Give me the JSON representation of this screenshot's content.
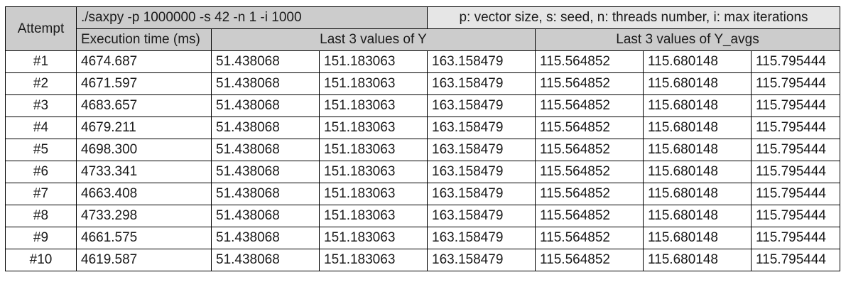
{
  "header": {
    "attempt_label": "Attempt",
    "command": "./saxpy -p 1000000 -s 42 -n 1 -i 1000",
    "legend": "p: vector size, s: seed, n: threads number, i: max iterations",
    "exec_time_label": "Execution time (ms)",
    "last_y_label": "Last 3 values of Y",
    "last_yavgs_label": "Last 3 values of Y_avgs"
  },
  "rows": [
    {
      "attempt": "#1",
      "time": "4674.687",
      "y": [
        "51.438068",
        "151.183063",
        "163.158479"
      ],
      "yavg": [
        "115.564852",
        "115.680148",
        "115.795444"
      ]
    },
    {
      "attempt": "#2",
      "time": "4671.597",
      "y": [
        "51.438068",
        "151.183063",
        "163.158479"
      ],
      "yavg": [
        "115.564852",
        "115.680148",
        "115.795444"
      ]
    },
    {
      "attempt": "#3",
      "time": "4683.657",
      "y": [
        "51.438068",
        "151.183063",
        "163.158479"
      ],
      "yavg": [
        "115.564852",
        "115.680148",
        "115.795444"
      ]
    },
    {
      "attempt": "#4",
      "time": "4679.211",
      "y": [
        "51.438068",
        "151.183063",
        "163.158479"
      ],
      "yavg": [
        "115.564852",
        "115.680148",
        "115.795444"
      ]
    },
    {
      "attempt": "#5",
      "time": "4698.300",
      "y": [
        "51.438068",
        "151.183063",
        "163.158479"
      ],
      "yavg": [
        "115.564852",
        "115.680148",
        "115.795444"
      ]
    },
    {
      "attempt": "#6",
      "time": "4733.341",
      "y": [
        "51.438068",
        "151.183063",
        "163.158479"
      ],
      "yavg": [
        "115.564852",
        "115.680148",
        "115.795444"
      ]
    },
    {
      "attempt": "#7",
      "time": "4663.408",
      "y": [
        "51.438068",
        "151.183063",
        "163.158479"
      ],
      "yavg": [
        "115.564852",
        "115.680148",
        "115.795444"
      ]
    },
    {
      "attempt": "#8",
      "time": "4733.298",
      "y": [
        "51.438068",
        "151.183063",
        "163.158479"
      ],
      "yavg": [
        "115.564852",
        "115.680148",
        "115.795444"
      ]
    },
    {
      "attempt": "#9",
      "time": "4661.575",
      "y": [
        "51.438068",
        "151.183063",
        "163.158479"
      ],
      "yavg": [
        "115.564852",
        "115.680148",
        "115.795444"
      ]
    },
    {
      "attempt": "#10",
      "time": "4619.587",
      "y": [
        "51.438068",
        "151.183063",
        "163.158479"
      ],
      "yavg": [
        "115.564852",
        "115.680148",
        "115.795444"
      ]
    }
  ]
}
